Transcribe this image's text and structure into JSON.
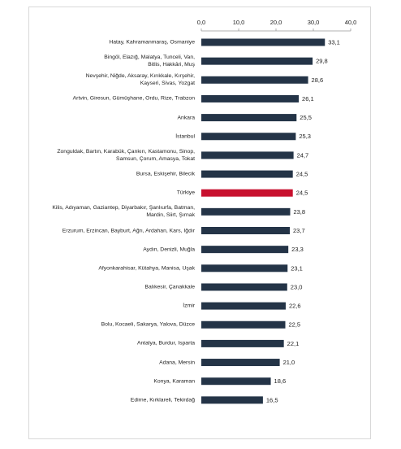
{
  "chart_data": {
    "type": "bar",
    "orientation": "horizontal",
    "categories": [
      "Hatay, Kahramanmaraş, Osmaniye",
      "Bingöl, Elazığ, Malatya, Tunceli, Van,\nBitlis, Hakkâri, Muş",
      "Nevşehir, Niğde, Aksaray, Kırıkkale, Kırşehir,\nKayseri, Sivas, Yozgat",
      "Artvin, Giresun, Gümüşhane, Ordu, Rize, Trabzon",
      "Ankara",
      "İstanbul",
      "Zonguldak, Bartın, Karabük, Çankırı, Kastamonu, Sinop,\nSamsun, Çorum, Amasya, Tokat",
      "Bursa, Eskişehir, Bilecik",
      "Türkiye",
      "Kilis, Adıyaman, Gaziantep, Diyarbakır, Şanlıurfa, Batman,\nMardin, Siirt, Şırnak",
      "Erzurum, Erzincan, Bayburt, Ağrı, Ardahan, Kars, Iğdır",
      "Aydın, Denizli, Muğla",
      "Afyonkarahisar, Kütahya, Manisa, Uşak",
      "Balıkesir, Çanakkale",
      "İzmir",
      "Bolu, Kocaeli, Sakarya, Yalova, Düzce",
      "Antalya, Burdur, Isparta",
      "Adana, Mersin",
      "Konya, Karaman",
      "Edirne, Kırklareli, Tekirdağ"
    ],
    "values": [
      33.1,
      29.8,
      28.6,
      26.1,
      25.5,
      25.3,
      24.7,
      24.5,
      24.5,
      23.8,
      23.7,
      23.3,
      23.1,
      23.0,
      22.6,
      22.5,
      22.1,
      21.0,
      18.6,
      16.5
    ],
    "value_labels": [
      "33,1",
      "29,8",
      "28,6",
      "26,1",
      "25,5",
      "25,3",
      "24,7",
      "24,5",
      "24,5",
      "23,8",
      "23,7",
      "23,3",
      "23,1",
      "23,0",
      "22,6",
      "22,5",
      "22,1",
      "21,0",
      "18,6",
      "16,5"
    ],
    "colors": [
      "#243447",
      "#243447",
      "#243447",
      "#243447",
      "#243447",
      "#243447",
      "#243447",
      "#243447",
      "#c8102e",
      "#243447",
      "#243447",
      "#243447",
      "#243447",
      "#243447",
      "#243447",
      "#243447",
      "#243447",
      "#243447",
      "#243447",
      "#243447"
    ],
    "xlim": [
      0,
      40
    ],
    "xticks": [
      {
        "value": 0,
        "label": "0,0"
      },
      {
        "value": 10,
        "label": "10,0"
      },
      {
        "value": 20,
        "label": "20,0"
      },
      {
        "value": 30,
        "label": "30,0"
      },
      {
        "value": 40,
        "label": "40,0"
      }
    ]
  }
}
